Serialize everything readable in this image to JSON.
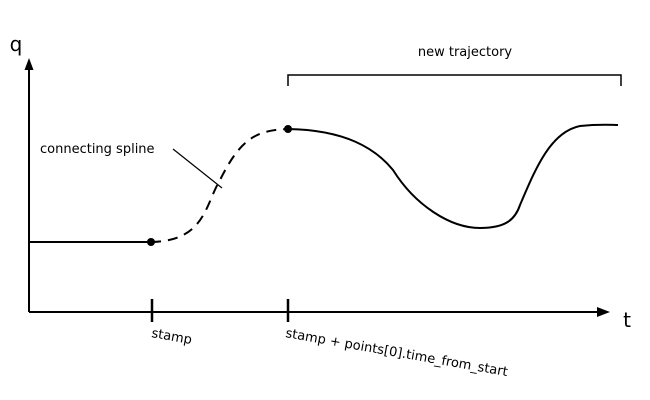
{
  "axes": {
    "y_label": "q",
    "x_label": "t"
  },
  "ticks": {
    "stamp": "stamp",
    "start": "stamp + points[0].time_from_start"
  },
  "annotations": {
    "new_trajectory": "new trajectory",
    "connecting_spline": "connecting spline"
  },
  "colors": {
    "ink": "#000000",
    "background": "#ffffff"
  }
}
